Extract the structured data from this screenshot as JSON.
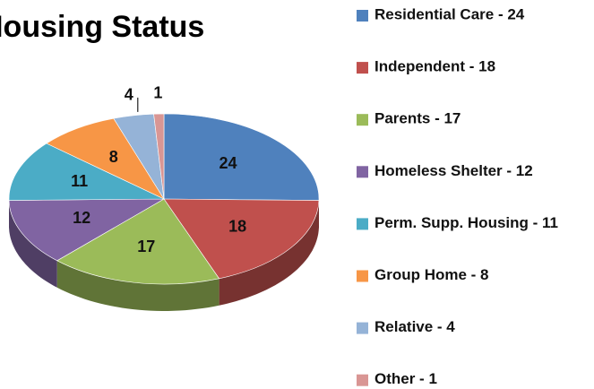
{
  "chart_data": {
    "type": "pie",
    "title": "Housing Status",
    "categories": [
      "Residential Care - 24",
      "Independent  - 18",
      "Parents - 17",
      "Homeless Shelter - 12",
      "Perm. Supp. Housing - 11",
      "Group Home - 8",
      "Relative - 4",
      "Other - 1"
    ],
    "values": [
      24,
      18,
      17,
      12,
      11,
      8,
      4,
      1
    ],
    "colors": [
      "#4f81bd",
      "#c0504d",
      "#9bbb59",
      "#8064a2",
      "#4bacc6",
      "#f79646",
      "#95b3d7",
      "#d99694"
    ],
    "legend": "right"
  }
}
